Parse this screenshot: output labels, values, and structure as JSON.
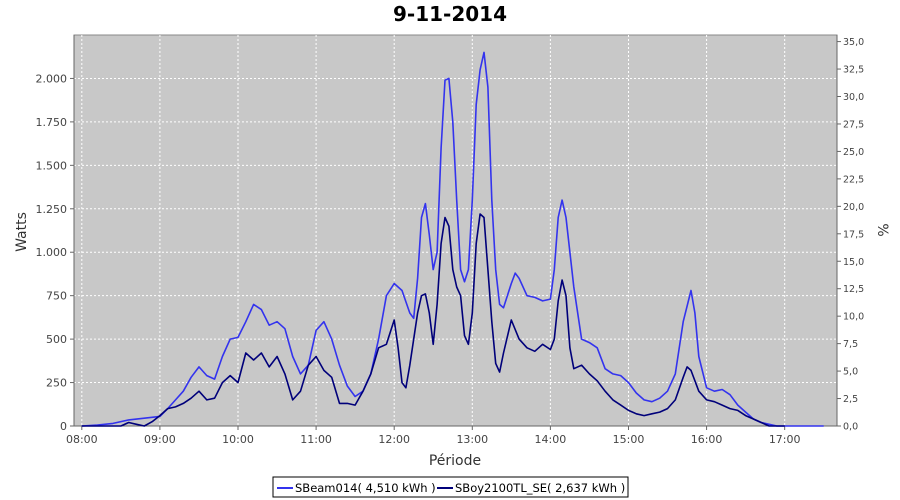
{
  "chart_data": {
    "type": "line",
    "title": "9-11-2014",
    "xlabel": "Période",
    "ylabel": "Watts",
    "y2label": "%",
    "xlim": [
      7.9,
      17.67
    ],
    "ylim": [
      0,
      2250
    ],
    "y2lim": [
      0,
      35.6
    ],
    "x_ticks": [
      {
        "v": 8,
        "label": "08:00"
      },
      {
        "v": 9,
        "label": "09:00"
      },
      {
        "v": 10,
        "label": "10:00"
      },
      {
        "v": 11,
        "label": "11:00"
      },
      {
        "v": 12,
        "label": "12:00"
      },
      {
        "v": 13,
        "label": "13:00"
      },
      {
        "v": 14,
        "label": "14:00"
      },
      {
        "v": 15,
        "label": "15:00"
      },
      {
        "v": 16,
        "label": "16:00"
      },
      {
        "v": 17,
        "label": "17:00"
      }
    ],
    "y_ticks": [
      {
        "v": 0,
        "label": "0"
      },
      {
        "v": 250,
        "label": "250"
      },
      {
        "v": 500,
        "label": "500"
      },
      {
        "v": 750,
        "label": "750"
      },
      {
        "v": 1000,
        "label": "1.000"
      },
      {
        "v": 1250,
        "label": "1.250"
      },
      {
        "v": 1500,
        "label": "1.500"
      },
      {
        "v": 1750,
        "label": "1.750"
      },
      {
        "v": 2000,
        "label": "2.000"
      }
    ],
    "y2_ticks": [
      {
        "v": 0,
        "label": "0,0"
      },
      {
        "v": 2.5,
        "label": "2,5"
      },
      {
        "v": 5,
        "label": "5,0"
      },
      {
        "v": 7.5,
        "label": "7,5"
      },
      {
        "v": 10,
        "label": "10,0"
      },
      {
        "v": 12.5,
        "label": "12,5"
      },
      {
        "v": 15,
        "label": "15,0"
      },
      {
        "v": 17.5,
        "label": "17,5"
      },
      {
        "v": 20,
        "label": "20,0"
      },
      {
        "v": 22.5,
        "label": "22,5"
      },
      {
        "v": 25,
        "label": "25,0"
      },
      {
        "v": 27.5,
        "label": "27,5"
      },
      {
        "v": 30,
        "label": "30,0"
      },
      {
        "v": 32.5,
        "label": "32,5"
      },
      {
        "v": 35,
        "label": "35,0"
      }
    ],
    "grid": true,
    "legend_position": "bottom",
    "series": [
      {
        "name": "SBeam014( 4,510 kWh )",
        "color": "#3333ee",
        "points": [
          [
            8.0,
            0
          ],
          [
            8.2,
            5
          ],
          [
            8.4,
            15
          ],
          [
            8.6,
            35
          ],
          [
            8.8,
            45
          ],
          [
            9.0,
            55
          ],
          [
            9.1,
            100
          ],
          [
            9.2,
            150
          ],
          [
            9.3,
            200
          ],
          [
            9.4,
            280
          ],
          [
            9.5,
            340
          ],
          [
            9.6,
            290
          ],
          [
            9.7,
            270
          ],
          [
            9.8,
            400
          ],
          [
            9.9,
            500
          ],
          [
            10.0,
            510
          ],
          [
            10.1,
            600
          ],
          [
            10.2,
            700
          ],
          [
            10.3,
            670
          ],
          [
            10.4,
            580
          ],
          [
            10.5,
            600
          ],
          [
            10.6,
            560
          ],
          [
            10.7,
            400
          ],
          [
            10.8,
            300
          ],
          [
            10.9,
            350
          ],
          [
            11.0,
            550
          ],
          [
            11.1,
            600
          ],
          [
            11.2,
            500
          ],
          [
            11.3,
            350
          ],
          [
            11.4,
            230
          ],
          [
            11.5,
            170
          ],
          [
            11.6,
            200
          ],
          [
            11.7,
            300
          ],
          [
            11.8,
            500
          ],
          [
            11.9,
            750
          ],
          [
            12.0,
            820
          ],
          [
            12.1,
            780
          ],
          [
            12.2,
            650
          ],
          [
            12.25,
            620
          ],
          [
            12.3,
            850
          ],
          [
            12.35,
            1200
          ],
          [
            12.4,
            1280
          ],
          [
            12.45,
            1100
          ],
          [
            12.5,
            900
          ],
          [
            12.55,
            1000
          ],
          [
            12.6,
            1600
          ],
          [
            12.65,
            1990
          ],
          [
            12.7,
            2000
          ],
          [
            12.75,
            1750
          ],
          [
            12.8,
            1300
          ],
          [
            12.85,
            900
          ],
          [
            12.9,
            830
          ],
          [
            12.95,
            900
          ],
          [
            13.0,
            1300
          ],
          [
            13.05,
            1850
          ],
          [
            13.1,
            2050
          ],
          [
            13.15,
            2150
          ],
          [
            13.2,
            1950
          ],
          [
            13.25,
            1300
          ],
          [
            13.3,
            900
          ],
          [
            13.35,
            700
          ],
          [
            13.4,
            680
          ],
          [
            13.5,
            820
          ],
          [
            13.55,
            880
          ],
          [
            13.6,
            850
          ],
          [
            13.7,
            750
          ],
          [
            13.8,
            740
          ],
          [
            13.9,
            720
          ],
          [
            14.0,
            730
          ],
          [
            14.05,
            900
          ],
          [
            14.1,
            1200
          ],
          [
            14.15,
            1300
          ],
          [
            14.2,
            1200
          ],
          [
            14.3,
            800
          ],
          [
            14.4,
            500
          ],
          [
            14.5,
            480
          ],
          [
            14.6,
            450
          ],
          [
            14.7,
            330
          ],
          [
            14.8,
            300
          ],
          [
            14.9,
            290
          ],
          [
            15.0,
            250
          ],
          [
            15.1,
            190
          ],
          [
            15.2,
            150
          ],
          [
            15.3,
            140
          ],
          [
            15.4,
            160
          ],
          [
            15.5,
            200
          ],
          [
            15.6,
            300
          ],
          [
            15.7,
            600
          ],
          [
            15.8,
            780
          ],
          [
            15.85,
            650
          ],
          [
            15.9,
            400
          ],
          [
            16.0,
            220
          ],
          [
            16.1,
            200
          ],
          [
            16.2,
            210
          ],
          [
            16.3,
            180
          ],
          [
            16.4,
            120
          ],
          [
            16.5,
            80
          ],
          [
            16.6,
            40
          ],
          [
            16.7,
            20
          ],
          [
            16.8,
            10
          ],
          [
            16.9,
            0
          ],
          [
            17.0,
            0
          ],
          [
            17.5,
            0
          ]
        ]
      },
      {
        "name": "SBoy2100TL_SE( 2,637 kWh )",
        "color": "#00007a",
        "points": [
          [
            8.0,
            0
          ],
          [
            8.5,
            0
          ],
          [
            8.6,
            20
          ],
          [
            8.7,
            10
          ],
          [
            8.8,
            0
          ],
          [
            8.9,
            25
          ],
          [
            9.0,
            60
          ],
          [
            9.1,
            100
          ],
          [
            9.2,
            110
          ],
          [
            9.3,
            130
          ],
          [
            9.4,
            160
          ],
          [
            9.5,
            200
          ],
          [
            9.6,
            150
          ],
          [
            9.7,
            160
          ],
          [
            9.8,
            250
          ],
          [
            9.9,
            290
          ],
          [
            10.0,
            250
          ],
          [
            10.1,
            420
          ],
          [
            10.2,
            380
          ],
          [
            10.3,
            420
          ],
          [
            10.4,
            340
          ],
          [
            10.5,
            400
          ],
          [
            10.6,
            300
          ],
          [
            10.7,
            150
          ],
          [
            10.8,
            200
          ],
          [
            10.9,
            350
          ],
          [
            11.0,
            400
          ],
          [
            11.1,
            320
          ],
          [
            11.2,
            280
          ],
          [
            11.3,
            130
          ],
          [
            11.4,
            130
          ],
          [
            11.5,
            120
          ],
          [
            11.6,
            200
          ],
          [
            11.7,
            300
          ],
          [
            11.8,
            450
          ],
          [
            11.9,
            470
          ],
          [
            12.0,
            610
          ],
          [
            12.05,
            450
          ],
          [
            12.1,
            250
          ],
          [
            12.15,
            220
          ],
          [
            12.2,
            350
          ],
          [
            12.3,
            650
          ],
          [
            12.35,
            750
          ],
          [
            12.4,
            760
          ],
          [
            12.45,
            650
          ],
          [
            12.5,
            470
          ],
          [
            12.55,
            700
          ],
          [
            12.6,
            1050
          ],
          [
            12.65,
            1200
          ],
          [
            12.7,
            1150
          ],
          [
            12.75,
            900
          ],
          [
            12.8,
            800
          ],
          [
            12.85,
            750
          ],
          [
            12.9,
            520
          ],
          [
            12.95,
            470
          ],
          [
            13.0,
            650
          ],
          [
            13.05,
            1050
          ],
          [
            13.1,
            1220
          ],
          [
            13.15,
            1200
          ],
          [
            13.2,
            900
          ],
          [
            13.25,
            600
          ],
          [
            13.3,
            360
          ],
          [
            13.35,
            310
          ],
          [
            13.4,
            420
          ],
          [
            13.5,
            610
          ],
          [
            13.6,
            500
          ],
          [
            13.7,
            450
          ],
          [
            13.8,
            430
          ],
          [
            13.9,
            470
          ],
          [
            14.0,
            440
          ],
          [
            14.05,
            500
          ],
          [
            14.1,
            720
          ],
          [
            14.15,
            840
          ],
          [
            14.2,
            750
          ],
          [
            14.25,
            450
          ],
          [
            14.3,
            330
          ],
          [
            14.4,
            350
          ],
          [
            14.5,
            300
          ],
          [
            14.6,
            260
          ],
          [
            14.7,
            200
          ],
          [
            14.8,
            150
          ],
          [
            14.9,
            120
          ],
          [
            15.0,
            90
          ],
          [
            15.1,
            70
          ],
          [
            15.2,
            60
          ],
          [
            15.3,
            70
          ],
          [
            15.4,
            80
          ],
          [
            15.5,
            100
          ],
          [
            15.6,
            150
          ],
          [
            15.7,
            280
          ],
          [
            15.75,
            340
          ],
          [
            15.8,
            320
          ],
          [
            15.9,
            200
          ],
          [
            16.0,
            150
          ],
          [
            16.1,
            140
          ],
          [
            16.2,
            120
          ],
          [
            16.3,
            100
          ],
          [
            16.4,
            90
          ],
          [
            16.5,
            60
          ],
          [
            16.6,
            40
          ],
          [
            16.7,
            20
          ],
          [
            16.8,
            0
          ],
          [
            17.0,
            0
          ]
        ]
      }
    ]
  }
}
